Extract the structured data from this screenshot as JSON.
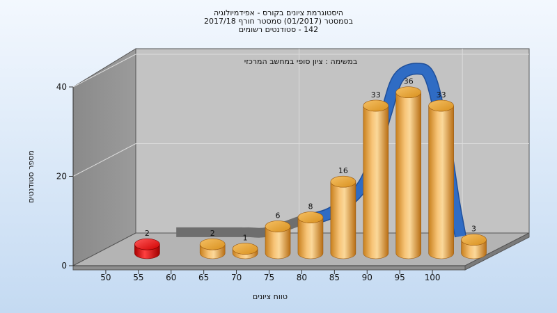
{
  "chart_data": {
    "type": "bar",
    "title_lines": [
      "היסטוגרמת ציונים בקורס - אפידמיולוגיה",
      "בסמסטר  (01/2017)  סמסטר חורף 2017/18",
      "142 - סטודנטים רשומים"
    ],
    "annotation": "במשימה : ציון סופי במחשב המרכזי",
    "xlabel": "טווח ציונים",
    "ylabel": "מספר סטודנטים",
    "x_ticks": [
      "50",
      "55",
      "60",
      "65",
      "70",
      "75",
      "80",
      "85",
      "90",
      "95",
      "100"
    ],
    "y_ticks": [
      "0",
      "20",
      "40"
    ],
    "ylim": [
      0,
      40
    ],
    "bars": [
      {
        "x": 50,
        "value": 2,
        "label": "2",
        "color": "#e01010"
      },
      {
        "x": 60,
        "value": 2,
        "label": "2",
        "color": "#e8a040"
      },
      {
        "x": 65,
        "value": 1,
        "label": "1",
        "color": "#e8a040"
      },
      {
        "x": 70,
        "value": 6,
        "label": "6",
        "color": "#e8a040"
      },
      {
        "x": 75,
        "value": 8,
        "label": "8",
        "color": "#e8a040"
      },
      {
        "x": 80,
        "value": 16,
        "label": "16",
        "color": "#e8a040"
      },
      {
        "x": 85,
        "value": 33,
        "label": "33",
        "color": "#e8a040"
      },
      {
        "x": 90,
        "value": 36,
        "label": "36",
        "color": "#e8a040"
      },
      {
        "x": 95,
        "value": 33,
        "label": "33",
        "color": "#e8a040"
      },
      {
        "x": 100,
        "value": 3,
        "label": "3",
        "color": "#e8a040"
      }
    ],
    "curve": {
      "color": "#2f6cc4",
      "points": [
        [
          56,
          3.9
        ],
        [
          60,
          3.9
        ],
        [
          65,
          3.9
        ],
        [
          67,
          3.9
        ],
        [
          70,
          4.0
        ],
        [
          75,
          6.5
        ],
        [
          80,
          8.5
        ],
        [
          85,
          15.5
        ],
        [
          88,
          30.0
        ],
        [
          90,
          38.5
        ],
        [
          93,
          40.5
        ],
        [
          95,
          38.0
        ],
        [
          97,
          25.0
        ],
        [
          98.5,
          11.0
        ],
        [
          99.5,
          3.0
        ]
      ]
    },
    "grid": true,
    "legend": "none"
  }
}
